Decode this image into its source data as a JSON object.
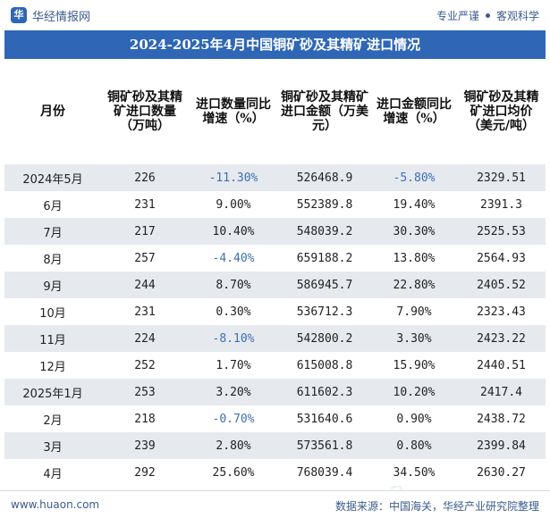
{
  "header": {
    "logo_mark": "华",
    "logo_text": "华经情报网",
    "slogan_left": "专业严谨",
    "slogan_right": "客观科学"
  },
  "title": "2024-2025年4月中国铜矿砂及其精矿进口情况",
  "columns": [
    "月份",
    "铜矿砂及其精矿进口数量（万吨）",
    "进口数量同比增速（%）",
    "铜矿砂及其精矿进口金额（万美元）",
    "进口金额同比增速（%）",
    "铜矿砂及其精矿进口均价（美元/吨）"
  ],
  "rows": [
    {
      "month": "2024年5月",
      "qty": "226",
      "qty_yoy": "-11.30%",
      "amount": "526468.9",
      "amount_yoy": "-5.80%",
      "price": "2329.51"
    },
    {
      "month": "6月",
      "qty": "231",
      "qty_yoy": "9.00%",
      "amount": "552389.8",
      "amount_yoy": "19.40%",
      "price": "2391.3"
    },
    {
      "month": "7月",
      "qty": "217",
      "qty_yoy": "10.40%",
      "amount": "548039.2",
      "amount_yoy": "30.30%",
      "price": "2525.53"
    },
    {
      "month": "8月",
      "qty": "257",
      "qty_yoy": "-4.40%",
      "amount": "659188.2",
      "amount_yoy": "13.80%",
      "price": "2564.93"
    },
    {
      "month": "9月",
      "qty": "244",
      "qty_yoy": "8.70%",
      "amount": "586945.7",
      "amount_yoy": "22.80%",
      "price": "2405.52"
    },
    {
      "month": "10月",
      "qty": "231",
      "qty_yoy": "0.30%",
      "amount": "536712.3",
      "amount_yoy": "7.90%",
      "price": "2323.43"
    },
    {
      "month": "11月",
      "qty": "224",
      "qty_yoy": "-8.10%",
      "amount": "542800.2",
      "amount_yoy": "3.30%",
      "price": "2423.22"
    },
    {
      "month": "12月",
      "qty": "252",
      "qty_yoy": "1.70%",
      "amount": "615008.8",
      "amount_yoy": "15.90%",
      "price": "2440.51"
    },
    {
      "month": "2025年1月",
      "qty": "253",
      "qty_yoy": "3.20%",
      "amount": "611602.3",
      "amount_yoy": "10.20%",
      "price": "2417.4"
    },
    {
      "month": "2月",
      "qty": "218",
      "qty_yoy": "-0.70%",
      "amount": "531640.6",
      "amount_yoy": "0.90%",
      "price": "2438.72"
    },
    {
      "month": "3月",
      "qty": "239",
      "qty_yoy": "2.80%",
      "amount": "573561.8",
      "amount_yoy": "0.80%",
      "price": "2399.84"
    },
    {
      "month": "4月",
      "qty": "292",
      "qty_yoy": "25.60%",
      "amount": "768039.4",
      "amount_yoy": "34.50%",
      "price": "2630.27"
    }
  ],
  "footer": {
    "website": "www.huaon.com",
    "source": "数据来源：中国海关，华经产业研究院整理"
  },
  "watermark_text": "华经产业研究院",
  "colors": {
    "title_bar": "#2f67b6",
    "stripe": "#e6e9ee",
    "negative_value": "#3d6fb4"
  }
}
